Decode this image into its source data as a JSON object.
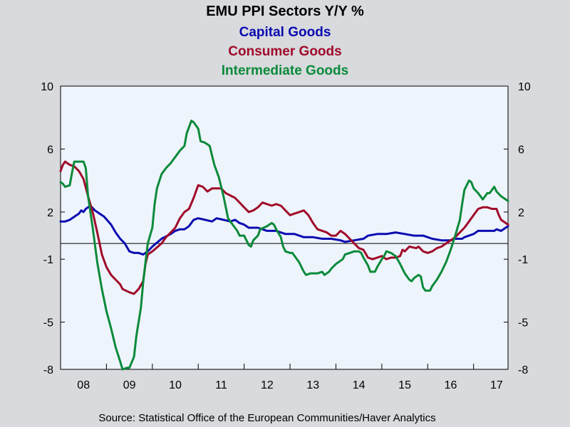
{
  "chart_data": {
    "type": "line",
    "title": "EMU PPI Sectors Y/Y %",
    "source": "Source:  Statistical Office of the European Communities/Haver Analytics",
    "ylim": [
      -8,
      10
    ],
    "yticks": [
      10,
      6,
      2,
      -1,
      -5,
      -8
    ],
    "ytick_labels": [
      "10",
      "6",
      "2",
      "-1",
      "-5",
      "-8"
    ],
    "xlim": [
      2008.0,
      2017.75
    ],
    "categories": [
      "08",
      "09",
      "10",
      "11",
      "12",
      "13",
      "14",
      "15",
      "16",
      "17"
    ],
    "zero_line": 0,
    "grid": false,
    "legend": "top-center",
    "series": [
      {
        "name": "Capital Goods",
        "color": "#0b0bb0",
        "points": [
          [
            2008.0,
            1.4
          ],
          [
            2008.1,
            1.4
          ],
          [
            2008.2,
            1.5
          ],
          [
            2008.3,
            1.7
          ],
          [
            2008.4,
            1.9
          ],
          [
            2008.45,
            2.1
          ],
          [
            2008.5,
            2.0
          ],
          [
            2008.55,
            2.2
          ],
          [
            2008.65,
            2.4
          ],
          [
            2008.75,
            2.1
          ],
          [
            2008.85,
            1.9
          ],
          [
            2008.95,
            1.7
          ],
          [
            2009.1,
            1.2
          ],
          [
            2009.2,
            0.7
          ],
          [
            2009.3,
            0.3
          ],
          [
            2009.4,
            0.0
          ],
          [
            2009.5,
            -0.5
          ],
          [
            2009.6,
            -0.6
          ],
          [
            2009.7,
            -0.6
          ],
          [
            2009.8,
            -0.7
          ],
          [
            2009.9,
            -0.5
          ],
          [
            2010.0,
            -0.2
          ],
          [
            2010.2,
            0.3
          ],
          [
            2010.4,
            0.6
          ],
          [
            2010.5,
            0.8
          ],
          [
            2010.6,
            0.9
          ],
          [
            2010.7,
            0.9
          ],
          [
            2010.8,
            1.1
          ],
          [
            2010.9,
            1.5
          ],
          [
            2011.0,
            1.6
          ],
          [
            2011.15,
            1.5
          ],
          [
            2011.3,
            1.4
          ],
          [
            2011.4,
            1.6
          ],
          [
            2011.55,
            1.5
          ],
          [
            2011.7,
            1.4
          ],
          [
            2011.8,
            1.5
          ],
          [
            2011.9,
            1.3
          ],
          [
            2012.0,
            1.2
          ],
          [
            2012.1,
            1.0
          ],
          [
            2012.3,
            1.0
          ],
          [
            2012.5,
            0.8
          ],
          [
            2012.7,
            0.8
          ],
          [
            2012.9,
            0.6
          ],
          [
            2013.1,
            0.6
          ],
          [
            2013.3,
            0.4
          ],
          [
            2013.5,
            0.4
          ],
          [
            2013.7,
            0.3
          ],
          [
            2013.9,
            0.3
          ],
          [
            2014.1,
            0.2
          ],
          [
            2014.2,
            0.1
          ],
          [
            2014.4,
            0.2
          ],
          [
            2014.6,
            0.3
          ],
          [
            2014.7,
            0.5
          ],
          [
            2014.9,
            0.6
          ],
          [
            2015.1,
            0.6
          ],
          [
            2015.3,
            0.7
          ],
          [
            2015.5,
            0.6
          ],
          [
            2015.7,
            0.5
          ],
          [
            2015.9,
            0.5
          ],
          [
            2016.0,
            0.4
          ],
          [
            2016.1,
            0.3
          ],
          [
            2016.3,
            0.2
          ],
          [
            2016.5,
            0.2
          ],
          [
            2016.6,
            0.3
          ],
          [
            2016.75,
            0.3
          ],
          [
            2016.8,
            0.4
          ],
          [
            2017.0,
            0.6
          ],
          [
            2017.1,
            0.8
          ],
          [
            2017.3,
            0.8
          ],
          [
            2017.45,
            0.8
          ],
          [
            2017.5,
            0.9
          ],
          [
            2017.6,
            0.8
          ],
          [
            2017.7,
            1.0
          ],
          [
            2017.75,
            1.1
          ]
        ]
      },
      {
        "name": "Consumer Goods",
        "color": "#a00a2a",
        "points": [
          [
            2008.0,
            4.6
          ],
          [
            2008.05,
            5.0
          ],
          [
            2008.1,
            5.2
          ],
          [
            2008.2,
            5.0
          ],
          [
            2008.3,
            4.9
          ],
          [
            2008.4,
            4.6
          ],
          [
            2008.5,
            4.1
          ],
          [
            2008.6,
            3.0
          ],
          [
            2008.7,
            2.0
          ],
          [
            2008.8,
            0.7
          ],
          [
            2008.9,
            -0.7
          ],
          [
            2009.0,
            -1.5
          ],
          [
            2009.1,
            -2.0
          ],
          [
            2009.2,
            -2.3
          ],
          [
            2009.3,
            -2.6
          ],
          [
            2009.35,
            -2.9
          ],
          [
            2009.5,
            -3.1
          ],
          [
            2009.6,
            -3.2
          ],
          [
            2009.7,
            -2.9
          ],
          [
            2009.8,
            -2.4
          ],
          [
            2009.85,
            -1.3
          ],
          [
            2009.9,
            -0.7
          ],
          [
            2010.0,
            -0.5
          ],
          [
            2010.2,
            0.0
          ],
          [
            2010.3,
            0.4
          ],
          [
            2010.5,
            1.0
          ],
          [
            2010.6,
            1.6
          ],
          [
            2010.7,
            2.0
          ],
          [
            2010.8,
            2.2
          ],
          [
            2010.9,
            2.9
          ],
          [
            2011.0,
            3.7
          ],
          [
            2011.1,
            3.6
          ],
          [
            2011.2,
            3.3
          ],
          [
            2011.3,
            3.5
          ],
          [
            2011.4,
            3.5
          ],
          [
            2011.5,
            3.5
          ],
          [
            2011.6,
            3.2
          ],
          [
            2011.8,
            2.9
          ],
          [
            2011.9,
            2.6
          ],
          [
            2012.0,
            2.3
          ],
          [
            2012.1,
            2.0
          ],
          [
            2012.2,
            2.1
          ],
          [
            2012.3,
            2.3
          ],
          [
            2012.4,
            2.6
          ],
          [
            2012.5,
            2.5
          ],
          [
            2012.6,
            2.4
          ],
          [
            2012.7,
            2.5
          ],
          [
            2012.8,
            2.4
          ],
          [
            2012.9,
            2.1
          ],
          [
            2013.0,
            1.8
          ],
          [
            2013.1,
            1.9
          ],
          [
            2013.2,
            2.0
          ],
          [
            2013.3,
            2.1
          ],
          [
            2013.4,
            1.8
          ],
          [
            2013.5,
            1.3
          ],
          [
            2013.6,
            0.9
          ],
          [
            2013.8,
            0.7
          ],
          [
            2013.9,
            0.5
          ],
          [
            2014.0,
            0.5
          ],
          [
            2014.1,
            0.8
          ],
          [
            2014.2,
            0.6
          ],
          [
            2014.3,
            0.3
          ],
          [
            2014.4,
            0.0
          ],
          [
            2014.5,
            -0.3
          ],
          [
            2014.6,
            -0.4
          ],
          [
            2014.7,
            -0.9
          ],
          [
            2014.8,
            -1.0
          ],
          [
            2014.9,
            -0.9
          ],
          [
            2015.0,
            -0.8
          ],
          [
            2015.1,
            -1.0
          ],
          [
            2015.2,
            -0.9
          ],
          [
            2015.3,
            -0.9
          ],
          [
            2015.4,
            -0.8
          ],
          [
            2015.45,
            -0.4
          ],
          [
            2015.5,
            -0.5
          ],
          [
            2015.6,
            -0.2
          ],
          [
            2015.75,
            -0.3
          ],
          [
            2015.8,
            -0.2
          ],
          [
            2015.9,
            -0.5
          ],
          [
            2016.0,
            -0.6
          ],
          [
            2016.1,
            -0.5
          ],
          [
            2016.2,
            -0.3
          ],
          [
            2016.3,
            -0.2
          ],
          [
            2016.4,
            0.0
          ],
          [
            2016.5,
            0.2
          ],
          [
            2016.6,
            0.4
          ],
          [
            2016.7,
            0.7
          ],
          [
            2016.8,
            1.0
          ],
          [
            2016.9,
            1.4
          ],
          [
            2017.0,
            1.8
          ],
          [
            2017.1,
            2.2
          ],
          [
            2017.2,
            2.3
          ],
          [
            2017.3,
            2.3
          ],
          [
            2017.4,
            2.2
          ],
          [
            2017.5,
            2.2
          ],
          [
            2017.55,
            1.8
          ],
          [
            2017.6,
            1.5
          ],
          [
            2017.7,
            1.3
          ],
          [
            2017.75,
            1.2
          ]
        ]
      },
      {
        "name": "Intermediate Goods",
        "color": "#0a8a3a",
        "points": [
          [
            2008.0,
            3.9
          ],
          [
            2008.05,
            3.8
          ],
          [
            2008.1,
            3.6
          ],
          [
            2008.2,
            3.7
          ],
          [
            2008.25,
            4.5
          ],
          [
            2008.3,
            5.2
          ],
          [
            2008.4,
            5.2
          ],
          [
            2008.5,
            5.2
          ],
          [
            2008.55,
            4.8
          ],
          [
            2008.6,
            3.0
          ],
          [
            2008.7,
            1.0
          ],
          [
            2008.8,
            -1.2
          ],
          [
            2008.9,
            -2.9
          ],
          [
            2009.0,
            -4.3
          ],
          [
            2009.1,
            -5.4
          ],
          [
            2009.2,
            -6.6
          ],
          [
            2009.3,
            -7.5
          ],
          [
            2009.35,
            -8.0
          ],
          [
            2009.45,
            -7.9
          ],
          [
            2009.5,
            -7.9
          ],
          [
            2009.6,
            -7.2
          ],
          [
            2009.65,
            -5.9
          ],
          [
            2009.75,
            -4.1
          ],
          [
            2009.8,
            -2.5
          ],
          [
            2009.85,
            -1.2
          ],
          [
            2009.9,
            0.0
          ],
          [
            2010.0,
            1.0
          ],
          [
            2010.05,
            2.5
          ],
          [
            2010.1,
            3.5
          ],
          [
            2010.2,
            4.4
          ],
          [
            2010.3,
            4.8
          ],
          [
            2010.4,
            5.1
          ],
          [
            2010.5,
            5.5
          ],
          [
            2010.6,
            5.9
          ],
          [
            2010.7,
            6.2
          ],
          [
            2010.75,
            7.0
          ],
          [
            2010.85,
            7.8
          ],
          [
            2010.9,
            7.7
          ],
          [
            2011.0,
            7.3
          ],
          [
            2011.05,
            6.5
          ],
          [
            2011.15,
            6.4
          ],
          [
            2011.25,
            6.2
          ],
          [
            2011.35,
            5.0
          ],
          [
            2011.45,
            4.2
          ],
          [
            2011.55,
            3.0
          ],
          [
            2011.65,
            1.6
          ],
          [
            2011.75,
            1.2
          ],
          [
            2011.85,
            0.8
          ],
          [
            2011.9,
            0.5
          ],
          [
            2012.0,
            0.5
          ],
          [
            2012.05,
            0.2
          ],
          [
            2012.1,
            -0.1
          ],
          [
            2012.15,
            -0.2
          ],
          [
            2012.2,
            0.2
          ],
          [
            2012.3,
            0.5
          ],
          [
            2012.35,
            0.9
          ],
          [
            2012.5,
            1.1
          ],
          [
            2012.6,
            1.3
          ],
          [
            2012.65,
            1.2
          ],
          [
            2012.7,
            0.9
          ],
          [
            2012.8,
            0.4
          ],
          [
            2012.85,
            -0.2
          ],
          [
            2012.9,
            -0.5
          ],
          [
            2013.0,
            -0.6
          ],
          [
            2013.05,
            -0.6
          ],
          [
            2013.1,
            -0.8
          ],
          [
            2013.2,
            -1.2
          ],
          [
            2013.3,
            -1.8
          ],
          [
            2013.35,
            -2.0
          ],
          [
            2013.45,
            -1.9
          ],
          [
            2013.5,
            -1.9
          ],
          [
            2013.6,
            -1.9
          ],
          [
            2013.7,
            -1.8
          ],
          [
            2013.75,
            -2.0
          ],
          [
            2013.85,
            -1.8
          ],
          [
            2013.9,
            -1.6
          ],
          [
            2014.0,
            -1.3
          ],
          [
            2014.05,
            -1.2
          ],
          [
            2014.15,
            -1.0
          ],
          [
            2014.2,
            -0.7
          ],
          [
            2014.3,
            -0.6
          ],
          [
            2014.4,
            -0.5
          ],
          [
            2014.5,
            -0.5
          ],
          [
            2014.55,
            -0.6
          ],
          [
            2014.6,
            -0.9
          ],
          [
            2014.7,
            -1.4
          ],
          [
            2014.75,
            -1.8
          ],
          [
            2014.85,
            -1.8
          ],
          [
            2014.9,
            -1.5
          ],
          [
            2015.0,
            -1.0
          ],
          [
            2015.05,
            -0.8
          ],
          [
            2015.1,
            -0.5
          ],
          [
            2015.2,
            -0.6
          ],
          [
            2015.3,
            -0.8
          ],
          [
            2015.4,
            -1.3
          ],
          [
            2015.5,
            -1.9
          ],
          [
            2015.6,
            -2.3
          ],
          [
            2015.65,
            -2.4
          ],
          [
            2015.7,
            -2.2
          ],
          [
            2015.8,
            -2.0
          ],
          [
            2015.85,
            -2.1
          ],
          [
            2015.9,
            -2.8
          ],
          [
            2015.95,
            -3.0
          ],
          [
            2016.05,
            -3.0
          ],
          [
            2016.1,
            -2.7
          ],
          [
            2016.2,
            -2.3
          ],
          [
            2016.3,
            -1.8
          ],
          [
            2016.4,
            -1.2
          ],
          [
            2016.5,
            -0.4
          ],
          [
            2016.6,
            0.5
          ],
          [
            2016.7,
            1.5
          ],
          [
            2016.75,
            2.5
          ],
          [
            2016.8,
            3.4
          ],
          [
            2016.9,
            4.0
          ],
          [
            2016.95,
            3.9
          ],
          [
            2017.0,
            3.5
          ],
          [
            2017.1,
            3.2
          ],
          [
            2017.2,
            2.8
          ],
          [
            2017.3,
            3.2
          ],
          [
            2017.35,
            3.2
          ],
          [
            2017.45,
            3.6
          ],
          [
            2017.5,
            3.3
          ],
          [
            2017.6,
            3.0
          ],
          [
            2017.7,
            2.8
          ],
          [
            2017.75,
            2.7
          ]
        ]
      }
    ]
  }
}
